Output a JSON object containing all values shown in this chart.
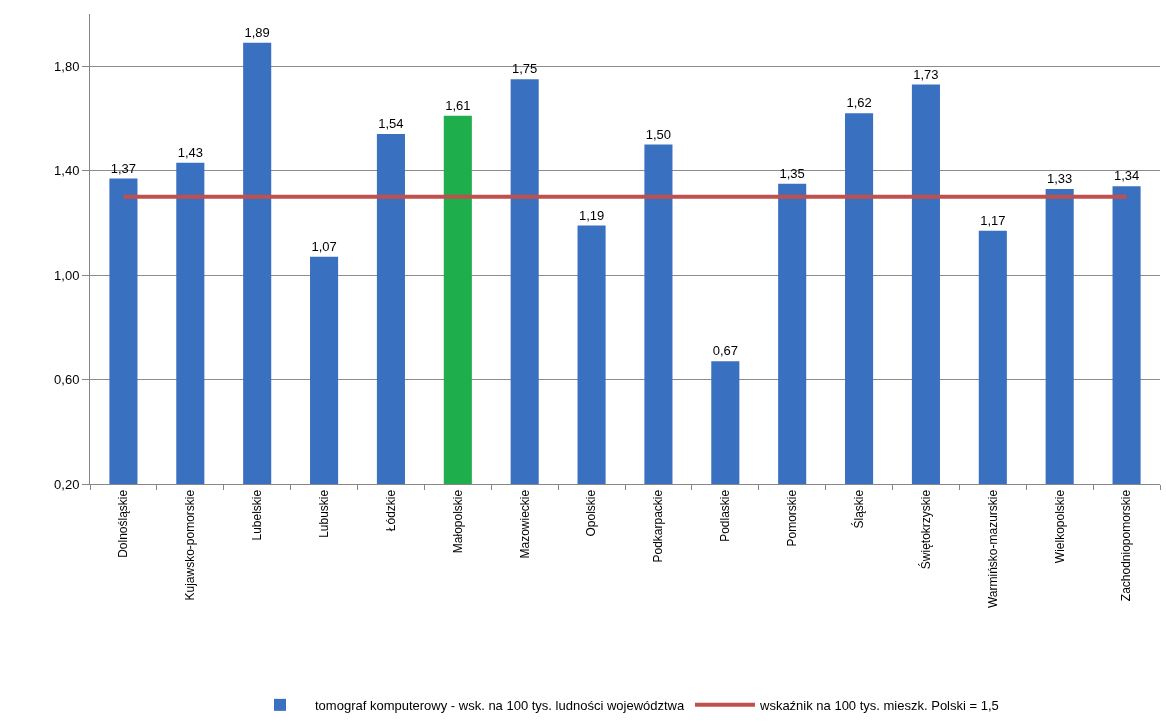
{
  "chart_data": {
    "type": "bar",
    "categories": [
      "Dolnośląskie",
      "Kujawsko-pomorskie",
      "Lubelskie",
      "Lubuskie",
      "Łódzkie",
      "Małopolskie",
      "Mazowieckie",
      "Opolskie",
      "Podkarpackie",
      "Podlaskie",
      "Pomorskie",
      "Śląskie",
      "Świętokrzyskie",
      "Warmińsko-mazurskie",
      "Wielkopolskie",
      "Zachodniopomorskie"
    ],
    "series": [
      {
        "name": "tomograf komputerowy - wsk. na 100 tys. ludności województwa",
        "colors": [
          "#3a70c0",
          "#3a70c0",
          "#3a70c0",
          "#3a70c0",
          "#3a70c0",
          "#1fae4c",
          "#3a70c0",
          "#3a70c0",
          "#3a70c0",
          "#3a70c0",
          "#3a70c0",
          "#3a70c0",
          "#3a70c0",
          "#3a70c0",
          "#3a70c0",
          "#3a70c0"
        ],
        "values": [
          1.37,
          1.43,
          1.89,
          1.07,
          1.54,
          1.61,
          1.75,
          1.19,
          1.5,
          0.67,
          1.35,
          1.62,
          1.73,
          1.17,
          1.33,
          1.34
        ],
        "value_labels": [
          "1,37",
          "1,43",
          "1,89",
          "1,07",
          "1,54",
          "1,61",
          "1,75",
          "1,19",
          "1,50",
          "0,67",
          "1,35",
          "1,62",
          "1,73",
          "1,17",
          "1,33",
          "1,34"
        ]
      },
      {
        "name": "wskaźnik na 100 tys. mieszk. Polski = 1,5",
        "type": "line",
        "color": "#c0504d",
        "values": [
          1.3,
          1.3,
          1.3,
          1.3,
          1.3,
          1.3,
          1.3,
          1.3,
          1.3,
          1.3,
          1.3,
          1.3,
          1.3,
          1.3,
          1.3,
          1.3
        ]
      }
    ],
    "ylim": [
      0.2,
      2.0
    ],
    "yticks": [
      {
        "value": 0.2,
        "label": "0,20"
      },
      {
        "value": 0.6,
        "label": "0,60"
      },
      {
        "value": 1.0,
        "label": "1,00"
      },
      {
        "value": 1.4,
        "label": "1,40"
      },
      {
        "value": 1.8,
        "label": "1,80"
      }
    ],
    "grid": "y",
    "legend": "bottom",
    "line_style": "solid",
    "marker": "none"
  }
}
